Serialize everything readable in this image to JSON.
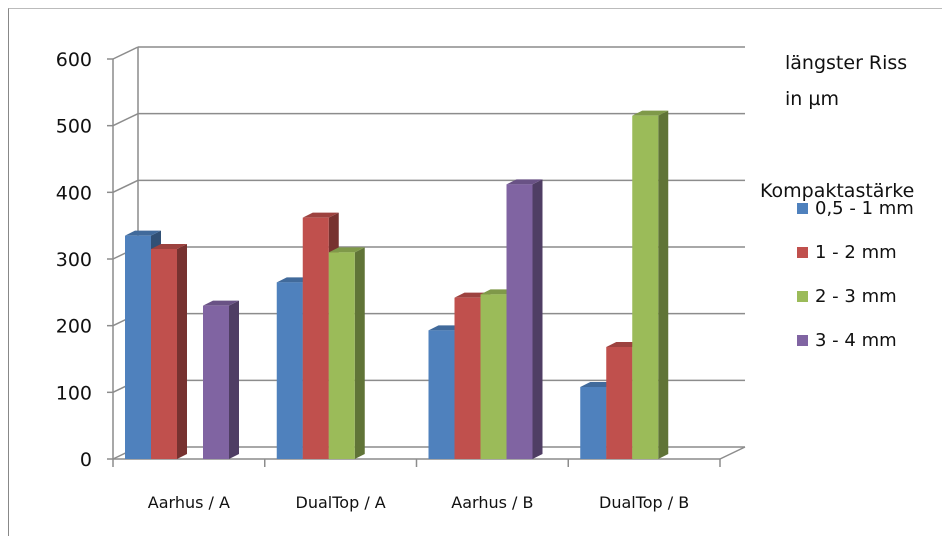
{
  "chart_data": {
    "type": "bar",
    "title": "",
    "xlabel": "",
    "ylabel": "",
    "ylim": [
      0,
      600
    ],
    "yticks": [
      0,
      100,
      200,
      300,
      400,
      500,
      600
    ],
    "categories": [
      "Aarhus / A",
      "DualTop / A",
      "Aarhus / B",
      "DualTop / B"
    ],
    "series": [
      {
        "name": "0,5 - 1 mm",
        "color": "#4F81BD",
        "values": [
          335,
          265,
          193,
          108
        ]
      },
      {
        "name": "1 - 2 mm",
        "color": "#C0504D",
        "values": [
          315,
          362,
          242,
          168
        ]
      },
      {
        "name": "2 - 3 mm",
        "color": "#9BBB59",
        "values": [
          null,
          310,
          247,
          515
        ]
      },
      {
        "name": "3 - 4 mm",
        "color": "#8064A2",
        "values": [
          230,
          null,
          412,
          null
        ]
      }
    ],
    "annotation_lines": [
      "längster Riss",
      "in µm"
    ],
    "legend_title": "Kompaktastärke",
    "legend_position": "right",
    "grid": true
  }
}
